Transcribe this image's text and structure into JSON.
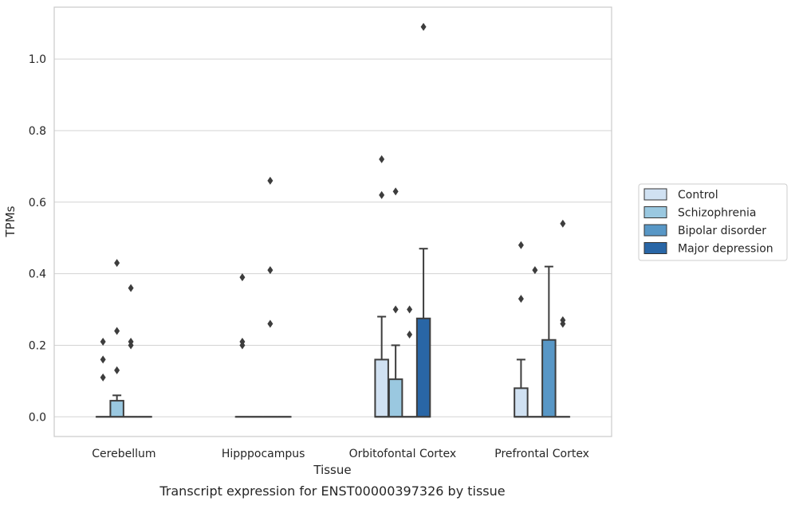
{
  "chart_data": {
    "type": "box",
    "caption": "Transcript expression for ENST00000397326 by tissue",
    "xlabel": "Tissue",
    "ylabel": "TPMs",
    "ylim": [
      -0.055,
      1.145
    ],
    "yticks": [
      0.0,
      0.2,
      0.4,
      0.6,
      0.8,
      1.0
    ],
    "ytick_labels": [
      "0.0",
      "0.2",
      "0.4",
      "0.6",
      "0.8",
      "1.0"
    ],
    "grid": "horizontal",
    "legend_position": "right",
    "categories": [
      "Cerebellum",
      "Hipppocampus",
      "Orbitofontal Cortex",
      "Prefrontal Cortex"
    ],
    "series": [
      {
        "name": "Control",
        "color": "#d0e1f2",
        "boxes": [
          {
            "q1": 0,
            "median": 0,
            "q3": 0,
            "whisker_low": 0,
            "whisker_high": 0,
            "outliers": [
              0.21,
              0.16,
              0.11
            ]
          },
          {
            "q1": 0,
            "median": 0,
            "q3": 0,
            "whisker_low": 0,
            "whisker_high": 0,
            "outliers": [
              0.39,
              0.21,
              0.2
            ]
          },
          {
            "q1": 0,
            "median": 0,
            "q3": 0.16,
            "whisker_low": 0,
            "whisker_high": 0.28,
            "outliers": [
              0.72,
              0.62
            ]
          },
          {
            "q1": 0,
            "median": 0,
            "q3": 0.08,
            "whisker_low": 0,
            "whisker_high": 0.16,
            "outliers": [
              0.48,
              0.33
            ]
          }
        ]
      },
      {
        "name": "Schizophrenia",
        "color": "#9ac8e0",
        "boxes": [
          {
            "q1": 0,
            "median": 0,
            "q3": 0.045,
            "whisker_low": 0,
            "whisker_high": 0.06,
            "outliers": [
              0.43,
              0.24,
              0.13
            ]
          },
          {
            "q1": 0,
            "median": 0,
            "q3": 0,
            "whisker_low": 0,
            "whisker_high": 0,
            "outliers": []
          },
          {
            "q1": 0,
            "median": 0,
            "q3": 0.105,
            "whisker_low": 0,
            "whisker_high": 0.2,
            "outliers": [
              0.63,
              0.3
            ]
          },
          {
            "q1": 0,
            "median": 0,
            "q3": 0,
            "whisker_low": 0,
            "whisker_high": 0,
            "outliers": [
              0.41
            ]
          }
        ]
      },
      {
        "name": "Bipolar disorder",
        "color": "#5897c6",
        "boxes": [
          {
            "q1": 0,
            "median": 0,
            "q3": 0,
            "whisker_low": 0,
            "whisker_high": 0,
            "outliers": [
              0.36,
              0.21,
              0.2
            ]
          },
          {
            "q1": 0,
            "median": 0,
            "q3": 0,
            "whisker_low": 0,
            "whisker_high": 0,
            "outliers": [
              0.66,
              0.41,
              0.26
            ]
          },
          {
            "q1": 0,
            "median": 0,
            "q3": 0,
            "whisker_low": 0,
            "whisker_high": 0,
            "outliers": [
              0.3,
              0.23
            ]
          },
          {
            "q1": 0,
            "median": 0,
            "q3": 0.215,
            "whisker_low": 0,
            "whisker_high": 0.42,
            "outliers": []
          }
        ]
      },
      {
        "name": "Major depression",
        "color": "#2966a6",
        "boxes": [
          {
            "q1": 0,
            "median": 0,
            "q3": 0,
            "whisker_low": 0,
            "whisker_high": 0,
            "outliers": []
          },
          {
            "q1": 0,
            "median": 0,
            "q3": 0,
            "whisker_low": 0,
            "whisker_high": 0,
            "outliers": []
          },
          {
            "q1": 0,
            "median": 0,
            "q3": 0.275,
            "whisker_low": 0,
            "whisker_high": 0.47,
            "outliers": [
              1.09
            ]
          },
          {
            "q1": 0,
            "median": 0,
            "q3": 0,
            "whisker_low": 0,
            "whisker_high": 0,
            "outliers": [
              0.54,
              0.27,
              0.26
            ]
          }
        ]
      }
    ]
  }
}
